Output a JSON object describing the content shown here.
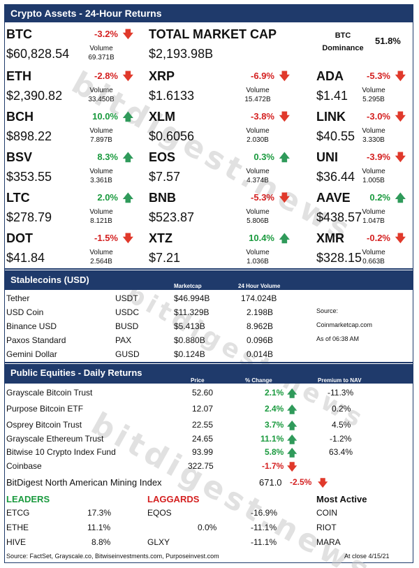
{
  "header": {
    "title": "Crypto Assets - 24-Hour Returns"
  },
  "volume_label": "Volume",
  "crypto": {
    "btc": {
      "symbol": "BTC",
      "price": "$60,828.54",
      "change": "-3.2%",
      "dir": "down",
      "volume": "69.371B"
    },
    "eth": {
      "symbol": "ETH",
      "price": "$2,390.82",
      "change": "-2.8%",
      "dir": "down",
      "volume": "33.450B"
    },
    "bch": {
      "symbol": "BCH",
      "price": "$898.22",
      "change": "10.0%",
      "dir": "up",
      "volume": "7.897B"
    },
    "bsv": {
      "symbol": "BSV",
      "price": "$353.55",
      "change": "8.3%",
      "dir": "up",
      "volume": "3.361B"
    },
    "ltc": {
      "symbol": "LTC",
      "price": "$278.79",
      "change": "2.0%",
      "dir": "up",
      "volume": "8.121B"
    },
    "dot": {
      "symbol": "DOT",
      "price": "$41.84",
      "change": "-1.5%",
      "dir": "down",
      "volume": "2.564B"
    },
    "xrp": {
      "symbol": "XRP",
      "price": "$1.6133",
      "change": "-6.9%",
      "dir": "down",
      "volume": "15.472B"
    },
    "xlm": {
      "symbol": "XLM",
      "price": "$0.6056",
      "change": "-3.8%",
      "dir": "down",
      "volume": "2.030B"
    },
    "eos": {
      "symbol": "EOS",
      "price": "$7.57",
      "change": "0.3%",
      "dir": "up",
      "volume": "4.374B"
    },
    "bnb": {
      "symbol": "BNB",
      "price": "$523.87",
      "change": "-5.3%",
      "dir": "down",
      "volume": "5.806B"
    },
    "xtz": {
      "symbol": "XTZ",
      "price": "$7.21",
      "change": "10.4%",
      "dir": "up",
      "volume": "1.036B"
    },
    "ada": {
      "symbol": "ADA",
      "price": "$1.41",
      "change": "-5.3%",
      "dir": "down",
      "volume": "5.295B"
    },
    "link": {
      "symbol": "LINK",
      "price": "$40.55",
      "change": "-3.0%",
      "dir": "down",
      "volume": "3.330B"
    },
    "uni": {
      "symbol": "UNI",
      "price": "$36.44",
      "change": "-3.9%",
      "dir": "down",
      "volume": "1.005B"
    },
    "aave": {
      "symbol": "AAVE",
      "price": "$438.57",
      "change": "0.2%",
      "dir": "up",
      "volume": "1.047B"
    },
    "xmr": {
      "symbol": "XMR",
      "price": "$328.15",
      "change": "-0.2%",
      "dir": "down",
      "volume": "0.663B"
    }
  },
  "market_cap": {
    "label": "TOTAL MARKET CAP",
    "value": "$2,193.98B"
  },
  "dominance": {
    "label_line1": "BTC",
    "label_line2": "Dominance",
    "value": "51.8%"
  },
  "stablecoins": {
    "title": "Stablecoins (USD)",
    "col_marketcap": "Marketcap",
    "col_volume": "24 Hour Volume",
    "rows": [
      {
        "name": "Tether",
        "ticker": "USDT",
        "marketcap": "$46.994B",
        "volume": "174.024B"
      },
      {
        "name": "USD Coin",
        "ticker": "USDC",
        "marketcap": "$11.329B",
        "volume": "2.198B"
      },
      {
        "name": "Binance USD",
        "ticker": "BUSD",
        "marketcap": "$5.413B",
        "volume": "8.962B"
      },
      {
        "name": "Paxos Standard",
        "ticker": "PAX",
        "marketcap": "$0.880B",
        "volume": "0.096B"
      },
      {
        "name": "Gemini Dollar",
        "ticker": "GUSD",
        "marketcap": "$0.124B",
        "volume": "0.014B"
      }
    ],
    "source_label": "Source:",
    "source_site": "Coinmarketcap.com",
    "as_of": "As of 06:38 AM"
  },
  "equities": {
    "title": "Public Equities - Daily Returns",
    "col_price": "Price",
    "col_change": "% Change",
    "col_premium": "Premium to NAV",
    "rows": [
      {
        "name": "Grayscale Bitcoin Trust",
        "price": "52.60",
        "change": "2.1%",
        "dir": "up",
        "premium": "-11.3%"
      },
      {
        "name": "Purpose Bitcoin ETF",
        "price": "12.07",
        "change": "2.4%",
        "dir": "up",
        "premium": "0.2%"
      },
      {
        "name": "Osprey Bitcoin Trust",
        "price": "22.55",
        "change": "3.7%",
        "dir": "up",
        "premium": "4.5%"
      },
      {
        "name": "Grayscale Ethereum Trust",
        "price": "24.65",
        "change": "11.1%",
        "dir": "up",
        "premium": "-1.2%"
      },
      {
        "name": "Bitwise 10 Crypto Index Fund",
        "price": "93.99",
        "change": "5.8%",
        "dir": "up",
        "premium": "63.4%"
      },
      {
        "name": "Coinbase",
        "price": "322.75",
        "change": "-1.7%",
        "dir": "down",
        "premium": ""
      }
    ],
    "mining_index": {
      "name": "BitDigest North American Mining Index",
      "value": "671.0",
      "change": "-2.5%"
    }
  },
  "leaders": {
    "title": "LEADERS",
    "rows": [
      {
        "ticker": "ETCG",
        "change": "17.3%"
      },
      {
        "ticker": "ETHE",
        "change": "11.1%"
      },
      {
        "ticker": "HIVE",
        "change": "8.8%"
      }
    ]
  },
  "laggards": {
    "title": "LAGGARDS",
    "rows": [
      {
        "ticker": "EQOS",
        "extra": "",
        "change": "-16.9%"
      },
      {
        "ticker": "",
        "extra": "0.0%",
        "change": "-11.1%"
      },
      {
        "ticker": "GLXY",
        "extra": "",
        "change": "-11.1%"
      }
    ]
  },
  "most_active": {
    "title": "Most Active",
    "rows": [
      "COIN",
      "RIOT",
      "MARA"
    ]
  },
  "footer": {
    "source": "Source: FactSet, Grayscale.co, Bitwiseinvestments.com, Purposeinvest.com",
    "date": "At close  4/15/21"
  },
  "watermark": "bitdigest.news",
  "colors": {
    "brand": "#1f3a6b",
    "up": "#1a9a3e",
    "down": "#d42020"
  },
  "icons": {
    "up": "arrow-up-icon",
    "down": "arrow-down-icon"
  }
}
